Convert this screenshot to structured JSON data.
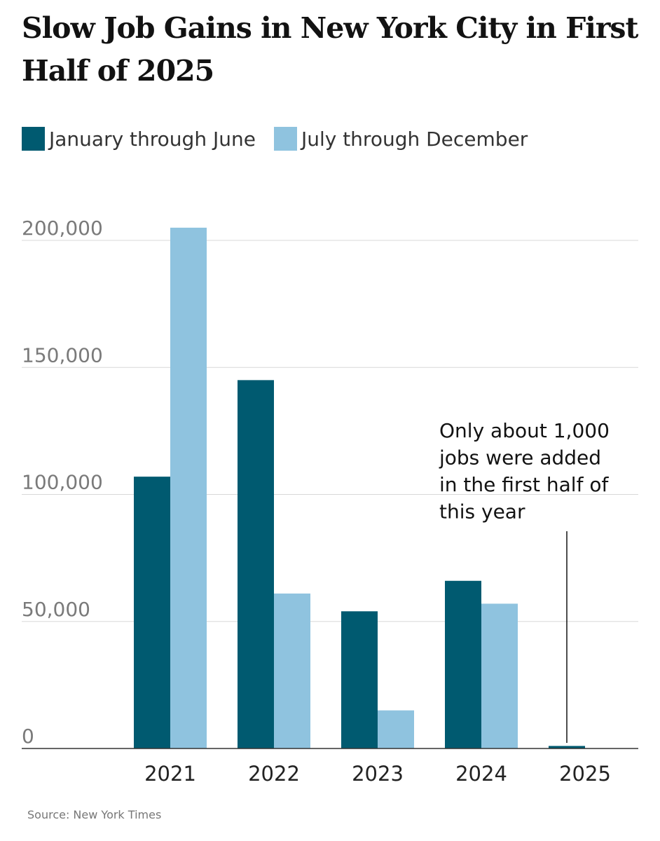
{
  "chart_data": {
    "type": "bar",
    "title": "Slow Job Gains in New York City in First Half of 2025",
    "categories": [
      "2021",
      "2022",
      "2023",
      "2024",
      "2025"
    ],
    "series": [
      {
        "name": "January through June",
        "color": "#005a70",
        "values": [
          107000,
          145000,
          54000,
          66000,
          1000
        ]
      },
      {
        "name": "July through December",
        "color": "#8fc3df",
        "values": [
          205000,
          61000,
          15000,
          57000,
          null
        ]
      }
    ],
    "ylim": [
      0,
      200000
    ],
    "yticks": [
      0,
      50000,
      100000,
      150000,
      200000
    ],
    "ytick_labels": [
      "0",
      "50,000",
      "100,000",
      "150,000",
      "200,000"
    ],
    "xlabel": "",
    "ylabel": "",
    "grid": true,
    "legend_position": "top-left",
    "annotation": {
      "category": "2025",
      "lines": [
        "Only about 1,000",
        "jobs were added",
        "in the first half of",
        "this year"
      ]
    },
    "source": "Source: New York Times"
  }
}
